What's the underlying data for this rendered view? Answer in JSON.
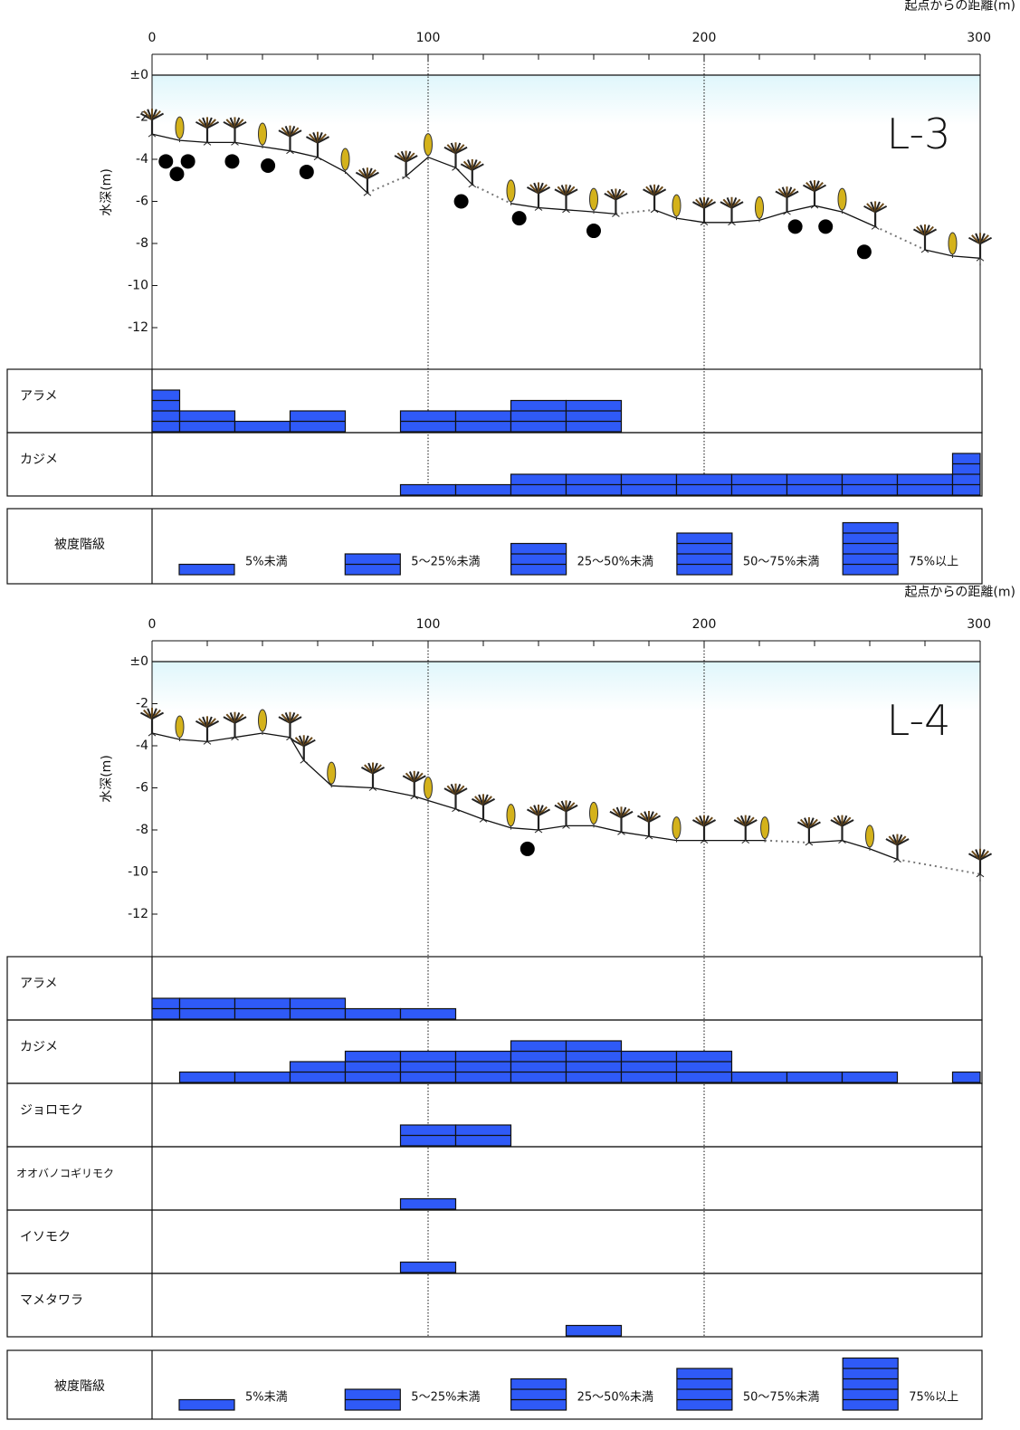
{
  "chart_data": [
    {
      "type": "transect",
      "title": "L-3",
      "x_label": "起点からの距離(m)",
      "y_label": "水深(m)",
      "xlim": [
        0,
        300
      ],
      "xticks": [
        0,
        100,
        200,
        300
      ],
      "xminorticks": [
        20,
        40,
        60,
        80,
        120,
        140,
        160,
        180,
        220,
        240,
        260,
        280
      ],
      "ylim": [
        -14,
        2
      ],
      "yticks": [
        {
          "value": 0,
          "label": "±0"
        },
        -2,
        -4,
        -6,
        -8,
        -10,
        -12
      ],
      "grid": true,
      "profile": {
        "x": [
          0,
          10,
          20,
          30,
          40,
          50,
          60,
          70,
          78,
          84,
          92,
          100,
          110,
          116,
          124,
          130,
          140,
          150,
          160,
          168,
          174,
          182,
          190,
          200,
          210,
          220,
          230,
          240,
          250,
          262,
          268,
          280,
          290,
          300
        ],
        "y": [
          -2.8,
          -3.1,
          -3.2,
          -3.2,
          -3.4,
          -3.6,
          -3.9,
          -4.6,
          -5.6,
          null,
          -4.8,
          -3.9,
          -4.4,
          -5.2,
          null,
          -6.1,
          -6.3,
          -6.4,
          -6.5,
          -6.6,
          null,
          -6.4,
          -6.8,
          -7.0,
          -7.0,
          -6.9,
          -6.5,
          -6.2,
          -6.5,
          -7.2,
          null,
          -8.3,
          -8.6,
          -8.7
        ]
      },
      "boulders": {
        "x": [
          5,
          9,
          13,
          29,
          42,
          56,
          112,
          133,
          160,
          233,
          244,
          258
        ],
        "y": [
          -4.1,
          -4.7,
          -4.1,
          -4.1,
          -4.3,
          -4.6,
          -6.0,
          -6.8,
          -7.4,
          -7.2,
          -7.2,
          -8.4
        ]
      }
    },
    {
      "type": "coverage",
      "color": "#2f5af7",
      "bins": [
        0,
        10,
        30,
        50,
        70,
        90,
        110,
        130,
        150,
        170,
        190,
        210,
        230,
        250,
        270,
        290,
        300
      ],
      "rows": [
        {
          "name": "アラメ",
          "values": [
            4,
            2,
            1,
            2,
            0,
            2,
            2,
            3,
            3,
            0,
            0,
            0,
            0,
            0,
            0,
            0
          ]
        },
        {
          "name": "カジメ",
          "values": [
            0,
            0,
            0,
            0,
            0,
            1,
            1,
            2,
            2,
            2,
            2,
            2,
            2,
            2,
            2,
            4
          ]
        }
      ]
    },
    {
      "type": "coverage-legend",
      "title": "被度階級",
      "color": "#2f5af7",
      "levels": [
        1,
        2,
        3,
        4,
        5
      ],
      "labels": [
        "5%未満",
        "5～25%未満",
        "25～50%未満",
        "50～75%未満",
        "75%以上"
      ]
    },
    {
      "type": "transect",
      "title": "L-4",
      "x_label": "起点からの距離(m)",
      "y_label": "水深(m)",
      "xlim": [
        0,
        300
      ],
      "xticks": [
        0,
        100,
        200,
        300
      ],
      "xminorticks": [
        20,
        40,
        60,
        80,
        120,
        140,
        160,
        180,
        220,
        240,
        260,
        280
      ],
      "ylim": [
        -14,
        2
      ],
      "yticks": [
        {
          "value": 0,
          "label": "±0"
        },
        -2,
        -4,
        -6,
        -8,
        -10,
        -12
      ],
      "grid": true,
      "profile": {
        "x": [
          0,
          10,
          20,
          30,
          40,
          50,
          55,
          65,
          80,
          95,
          100,
          110,
          120,
          130,
          140,
          150,
          160,
          170,
          180,
          190,
          200,
          215,
          222,
          232,
          238,
          250,
          260,
          270,
          290,
          300
        ],
        "y": [
          -3.4,
          -3.7,
          -3.8,
          -3.6,
          -3.4,
          -3.6,
          -4.7,
          -5.9,
          -6.0,
          -6.4,
          -6.6,
          -7.0,
          -7.5,
          -7.9,
          -8.0,
          -7.8,
          -7.8,
          -8.1,
          -8.3,
          -8.5,
          -8.5,
          -8.5,
          -8.5,
          null,
          -8.6,
          -8.5,
          -8.9,
          -9.4,
          null,
          -10.1
        ]
      },
      "boulders": {
        "x": [
          136
        ],
        "y": [
          -8.9
        ]
      }
    },
    {
      "type": "coverage",
      "color": "#2f5af7",
      "bins": [
        0,
        10,
        30,
        50,
        70,
        90,
        110,
        130,
        150,
        170,
        190,
        210,
        230,
        250,
        270,
        290,
        300
      ],
      "rows": [
        {
          "name": "アラメ",
          "values": [
            2,
            2,
            2,
            2,
            1,
            1,
            0,
            0,
            0,
            0,
            0,
            0,
            0,
            0,
            0,
            0
          ]
        },
        {
          "name": "カジメ",
          "values": [
            0,
            1,
            1,
            2,
            3,
            3,
            3,
            4,
            4,
            3,
            3,
            1,
            1,
            1,
            0,
            1
          ]
        },
        {
          "name": "ジョロモク",
          "values": [
            0,
            0,
            0,
            0,
            0,
            2,
            2,
            0,
            0,
            0,
            0,
            0,
            0,
            0,
            0,
            0
          ]
        },
        {
          "name": "オオバノコギリモク",
          "values": [
            0,
            0,
            0,
            0,
            0,
            1,
            0,
            0,
            0,
            0,
            0,
            0,
            0,
            0,
            0,
            0
          ]
        },
        {
          "name": "イソモク",
          "values": [
            0,
            0,
            0,
            0,
            0,
            1,
            0,
            0,
            0,
            0,
            0,
            0,
            0,
            0,
            0,
            0
          ]
        },
        {
          "name": "マメタワラ",
          "values": [
            0,
            0,
            0,
            0,
            0,
            0,
            0,
            0,
            1,
            0,
            0,
            0,
            0,
            0,
            0,
            0
          ]
        }
      ]
    },
    {
      "type": "coverage-legend",
      "title": "被度階級",
      "color": "#2f5af7",
      "levels": [
        1,
        2,
        3,
        4,
        5
      ],
      "labels": [
        "5%未満",
        "5～25%未満",
        "25～50%未満",
        "50～75%未満",
        "75%以上"
      ]
    }
  ]
}
